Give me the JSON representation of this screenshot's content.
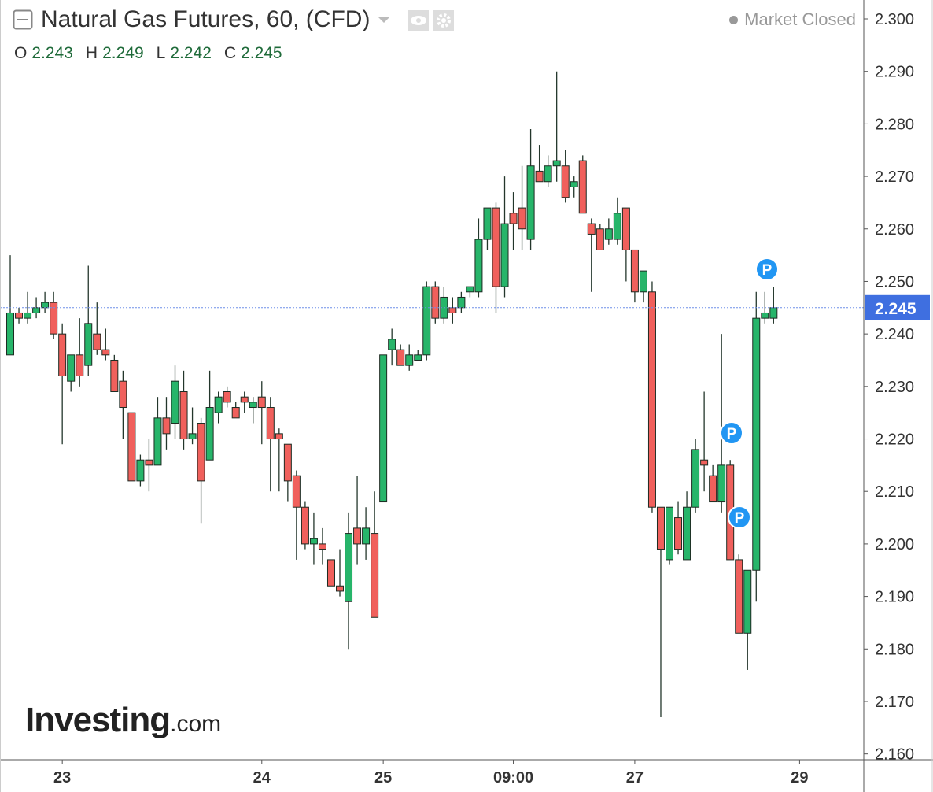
{
  "chart_data": {
    "type": "candlestick",
    "title": "Natural Gas Futures, 60, (CFD)",
    "status": "Market Closed",
    "legend": [
      {
        "label": "O",
        "value": 2.243
      },
      {
        "label": "H",
        "value": 2.249
      },
      {
        "label": "L",
        "value": 2.242
      },
      {
        "label": "C",
        "value": 2.245
      }
    ],
    "watermark": "Investing",
    "watermark_suffix": ".com",
    "up_color": "#27b56a",
    "down_color": "#f0605c",
    "last_price": 2.245,
    "markers": [
      "P",
      "P",
      "P"
    ],
    "open": [
      2.236,
      2.244,
      2.243,
      2.244,
      2.245,
      2.246,
      2.24,
      2.231,
      2.236,
      2.234,
      2.24,
      2.237,
      2.235,
      2.231,
      2.225,
      2.212,
      2.216,
      2.215,
      2.224,
      2.223,
      2.229,
      2.22,
      2.223,
      2.216,
      2.225,
      2.229,
      2.226,
      2.228,
      2.226,
      2.228,
      2.226,
      2.221,
      2.219,
      2.213,
      2.207,
      2.2,
      2.2,
      2.197,
      2.192,
      2.189,
      2.203,
      2.2,
      2.202,
      2.208,
      2.237,
      2.237,
      2.234,
      2.235,
      2.236,
      2.249,
      2.243,
      2.245,
      2.245,
      2.248,
      2.248,
      2.258,
      2.264,
      2.249,
      2.263,
      2.264,
      2.258,
      2.271,
      2.269,
      2.272,
      2.272,
      2.268,
      2.273,
      2.261,
      2.26,
      2.258,
      2.258,
      2.264,
      2.256,
      2.248,
      2.248,
      2.207,
      2.197,
      2.205,
      2.197,
      2.207,
      2.216,
      2.213,
      2.208,
      2.215,
      2.197,
      2.183,
      2.195,
      2.243,
      2.243
    ],
    "high": [
      2.255,
      2.245,
      2.248,
      2.247,
      2.248,
      2.248,
      2.242,
      2.236,
      2.243,
      2.253,
      2.246,
      2.241,
      2.236,
      2.233,
      2.225,
      2.217,
      2.22,
      2.228,
      2.228,
      2.234,
      2.233,
      2.226,
      2.224,
      2.233,
      2.229,
      2.23,
      2.227,
      2.229,
      2.228,
      2.231,
      2.228,
      2.222,
      2.219,
      2.214,
      2.208,
      2.206,
      2.203,
      2.197,
      2.199,
      2.206,
      2.213,
      2.207,
      2.21,
      2.236,
      2.241,
      2.238,
      2.238,
      2.237,
      2.25,
      2.25,
      2.249,
      2.247,
      2.248,
      2.249,
      2.262,
      2.264,
      2.265,
      2.27,
      2.267,
      2.272,
      2.279,
      2.276,
      2.274,
      2.29,
      2.275,
      2.27,
      2.274,
      2.262,
      2.261,
      2.262,
      2.266,
      2.264,
      2.256,
      2.252,
      2.25,
      2.207,
      2.207,
      2.208,
      2.21,
      2.22,
      2.229,
      2.215,
      2.24,
      2.216,
      2.198,
      2.195,
      2.248,
      2.248,
      2.249
    ],
    "low": [
      2.236,
      2.242,
      2.242,
      2.243,
      2.244,
      2.239,
      2.219,
      2.229,
      2.23,
      2.232,
      2.236,
      2.235,
      2.229,
      2.22,
      2.212,
      2.211,
      2.21,
      2.215,
      2.218,
      2.22,
      2.218,
      2.219,
      2.204,
      2.216,
      2.223,
      2.226,
      2.224,
      2.225,
      2.223,
      2.219,
      2.21,
      2.21,
      2.208,
      2.197,
      2.199,
      2.196,
      2.196,
      2.192,
      2.19,
      2.18,
      2.196,
      2.197,
      2.186,
      2.208,
      2.234,
      2.234,
      2.233,
      2.235,
      2.235,
      2.242,
      2.242,
      2.242,
      2.244,
      2.247,
      2.247,
      2.256,
      2.244,
      2.247,
      2.256,
      2.256,
      2.256,
      2.269,
      2.268,
      2.269,
      2.265,
      2.266,
      2.263,
      2.248,
      2.256,
      2.257,
      2.257,
      2.25,
      2.246,
      2.246,
      2.206,
      2.167,
      2.196,
      2.198,
      2.197,
      2.206,
      2.21,
      2.208,
      2.206,
      2.197,
      2.183,
      2.176,
      2.189,
      2.242,
      2.242
    ],
    "close": [
      2.244,
      2.243,
      2.244,
      2.245,
      2.246,
      2.24,
      2.232,
      2.236,
      2.232,
      2.242,
      2.237,
      2.236,
      2.229,
      2.226,
      2.212,
      2.216,
      2.215,
      2.224,
      2.221,
      2.231,
      2.22,
      2.221,
      2.212,
      2.226,
      2.228,
      2.227,
      2.224,
      2.227,
      2.227,
      2.226,
      2.22,
      2.22,
      2.212,
      2.207,
      2.2,
      2.201,
      2.199,
      2.192,
      2.191,
      2.202,
      2.2,
      2.203,
      2.186,
      2.236,
      2.239,
      2.234,
      2.236,
      2.236,
      2.249,
      2.243,
      2.247,
      2.244,
      2.247,
      2.249,
      2.258,
      2.264,
      2.249,
      2.261,
      2.261,
      2.26,
      2.272,
      2.269,
      2.272,
      2.273,
      2.266,
      2.269,
      2.263,
      2.259,
      2.256,
      2.26,
      2.263,
      2.256,
      2.248,
      2.252,
      2.207,
      2.199,
      2.207,
      2.199,
      2.207,
      2.218,
      2.215,
      2.208,
      2.215,
      2.197,
      2.183,
      2.195,
      2.243,
      2.244,
      2.245
    ],
    "xlim": [
      -1.18,
      98.4
    ],
    "xticks": [
      {
        "value": 6,
        "label": "23"
      },
      {
        "value": 29,
        "label": "24"
      },
      {
        "value": 43,
        "label": "25"
      },
      {
        "value": 58,
        "label": "09:00"
      },
      {
        "value": 72,
        "label": "27"
      },
      {
        "value": 91,
        "label": "29"
      }
    ],
    "ylim": [
      2.1589,
      2.3036
    ],
    "yticks": [
      {
        "value": 2.16,
        "label": "2.160"
      },
      {
        "value": 2.17,
        "label": "2.170"
      },
      {
        "value": 2.18,
        "label": "2.180"
      },
      {
        "value": 2.19,
        "label": "2.190"
      },
      {
        "value": 2.2,
        "label": "2.200"
      },
      {
        "value": 2.21,
        "label": "2.210"
      },
      {
        "value": 2.22,
        "label": "2.220"
      },
      {
        "value": 2.23,
        "label": "2.230"
      },
      {
        "value": 2.24,
        "label": "2.240"
      },
      {
        "value": 2.25,
        "label": "2.250"
      },
      {
        "value": 2.26,
        "label": "2.260"
      },
      {
        "value": 2.27,
        "label": "2.270"
      },
      {
        "value": 2.28,
        "label": "2.280"
      },
      {
        "value": 2.29,
        "label": "2.290"
      },
      {
        "value": 2.3,
        "label": "2.300"
      }
    ]
  }
}
